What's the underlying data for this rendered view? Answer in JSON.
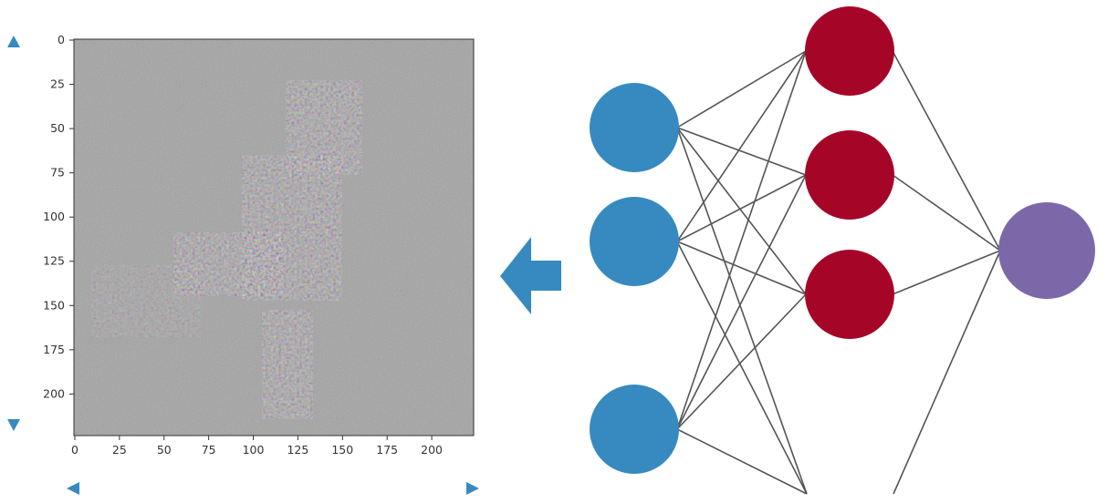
{
  "colors": {
    "input_node": "#368AC0",
    "hidden_node": "#A50628",
    "output_node": "#7C68A8",
    "edge": "#555555",
    "arrow": "#368AC0",
    "scroll_arrow": "#368AC0",
    "plot_background": "#8E8E8E",
    "axis": "#333333"
  },
  "icons": {
    "scroll_up": "triangle-up-icon",
    "scroll_down": "triangle-down-icon",
    "scroll_left": "triangle-left-icon",
    "scroll_right": "triangle-right-icon",
    "flow_arrow": "arrow-left-icon"
  },
  "saliency_plot": {
    "x_ticks": [
      "0",
      "25",
      "50",
      "75",
      "100",
      "125",
      "150",
      "175",
      "200"
    ],
    "y_ticks": [
      "0",
      "25",
      "50",
      "75",
      "100",
      "125",
      "150",
      "175",
      "200"
    ]
  },
  "network": {
    "input_nodes": 3,
    "hidden_nodes": 3,
    "output_nodes": 1
  }
}
